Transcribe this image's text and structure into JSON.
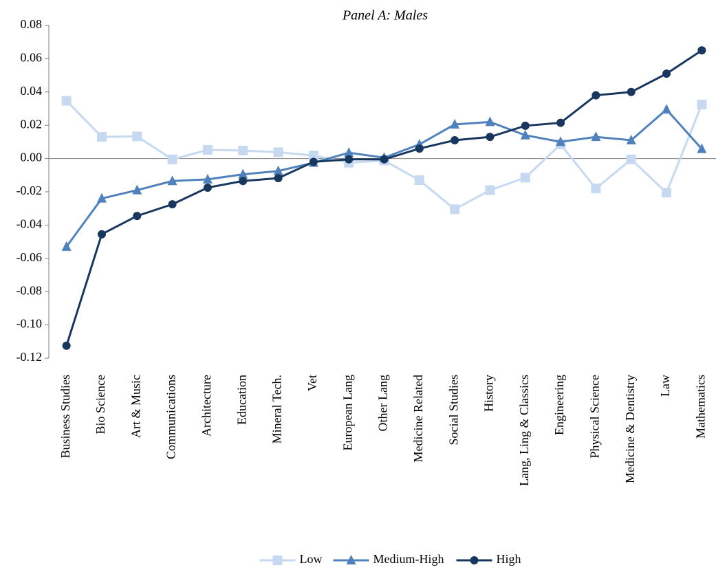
{
  "chart_data": {
    "type": "line",
    "title": "Panel A: Males",
    "categories": [
      "Business Studies",
      "Bio Science",
      "Art & Music",
      "Communications",
      "Architecture",
      "Education",
      "Mineral Tech.",
      "Vet",
      "European Lang",
      "Other Lang",
      "Medicine Related",
      "Social Studies",
      "History",
      "Lang, Ling & Classics",
      "Engineering",
      "Physical Science",
      "Medicine & Dentistry",
      "Law",
      "Mathematics"
    ],
    "series": [
      {
        "name": "Low",
        "color": "#c6d9f1",
        "marker": "square",
        "values": [
          0.0347,
          0.013,
          0.0133,
          -0.0005,
          0.0052,
          0.0048,
          0.0038,
          0.0018,
          -0.0025,
          -0.0012,
          -0.013,
          -0.0305,
          -0.019,
          -0.0115,
          0.0085,
          -0.018,
          -0.0005,
          -0.0205,
          0.0325
        ]
      },
      {
        "name": "Medium-High",
        "color": "#4f81bd",
        "marker": "triangle",
        "values": [
          -0.053,
          -0.024,
          -0.019,
          -0.0135,
          -0.0125,
          -0.0095,
          -0.0075,
          -0.0025,
          0.0035,
          0.0005,
          0.0085,
          0.0205,
          0.022,
          0.014,
          0.01,
          0.013,
          0.011,
          0.0295,
          0.0058
        ]
      },
      {
        "name": "High",
        "color": "#17375e",
        "marker": "circle",
        "values": [
          -0.1125,
          -0.0455,
          -0.0345,
          -0.0275,
          -0.0175,
          -0.0135,
          -0.0118,
          -0.002,
          -0.0005,
          -0.0005,
          0.006,
          0.011,
          0.013,
          0.0197,
          0.0215,
          0.038,
          0.04,
          0.051,
          0.065
        ]
      }
    ],
    "ylim": [
      -0.12,
      0.08
    ],
    "yticks": [
      {
        "value": -0.12,
        "label": "-0.12"
      },
      {
        "value": -0.1,
        "label": "-0.10"
      },
      {
        "value": -0.08,
        "label": "-0.08"
      },
      {
        "value": -0.06,
        "label": "-0.06"
      },
      {
        "value": -0.04,
        "label": "-0.04"
      },
      {
        "value": -0.02,
        "label": "-0.02"
      },
      {
        "value": 0,
        "label": "0.00"
      },
      {
        "value": 0.02,
        "label": "0.02"
      },
      {
        "value": 0.04,
        "label": "0.04"
      },
      {
        "value": 0.06,
        "label": "0.06"
      },
      {
        "value": 0.08,
        "label": "0.08"
      }
    ],
    "legend": "bottom"
  }
}
